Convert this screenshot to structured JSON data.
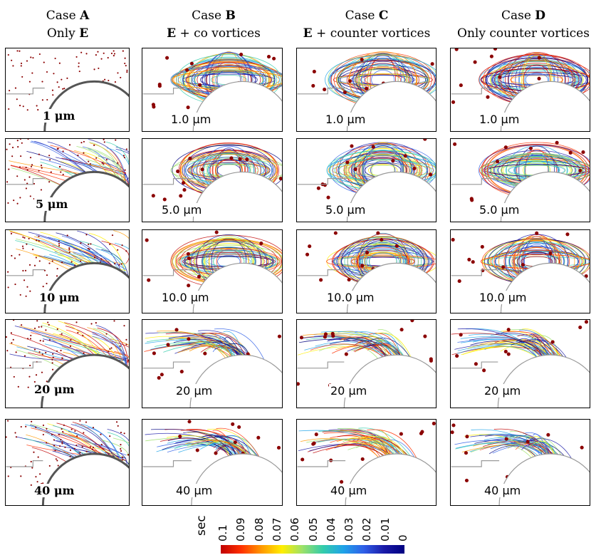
{
  "headers": [
    {
      "case_word": "Case",
      "case_letter": "A",
      "sub_pre": "Only",
      "sub_bold": "E",
      "sub_post": ""
    },
    {
      "case_word": "Case",
      "case_letter": "B",
      "sub_pre": "",
      "sub_bold": "E",
      "sub_post": " + co vortices"
    },
    {
      "case_word": "Case",
      "case_letter": "C",
      "sub_pre": "",
      "sub_bold": "E",
      "sub_post": " + counter vortices"
    },
    {
      "case_word": "Case",
      "case_letter": "D",
      "sub_pre": "",
      "sub_bold": "",
      "sub_post": "Only counter vortices"
    }
  ],
  "panel_labels": {
    "A": [
      "1 μm",
      "5 μm",
      "10 μm",
      "20 μm",
      "40 μm"
    ],
    "B": [
      "1.0 μm",
      "5.0 μm",
      "10.0 μm",
      "20 μm",
      "40 μm"
    ],
    "C": [
      "1.0 μm",
      "5.0 μm",
      "10.0 μm",
      "20 μm",
      "40 μm"
    ],
    "D": [
      "1.0 μm",
      "5.0 μm",
      "10.0 μm",
      "20 μm",
      "40 μm"
    ]
  },
  "colorbar": {
    "unit": "sec",
    "ticks": [
      "0.1",
      "0.09",
      "0.08",
      "0.07",
      "0.06",
      "0.05",
      "0.04",
      "0.03",
      "0.02",
      "0.01",
      "0"
    ],
    "colors": [
      "#c00000",
      "#ff3000",
      "#ff9900",
      "#ffee00",
      "#9be16a",
      "#33ccaa",
      "#1fa3e8",
      "#2f5fe8",
      "#1a1aa8",
      "#000080"
    ]
  }
}
